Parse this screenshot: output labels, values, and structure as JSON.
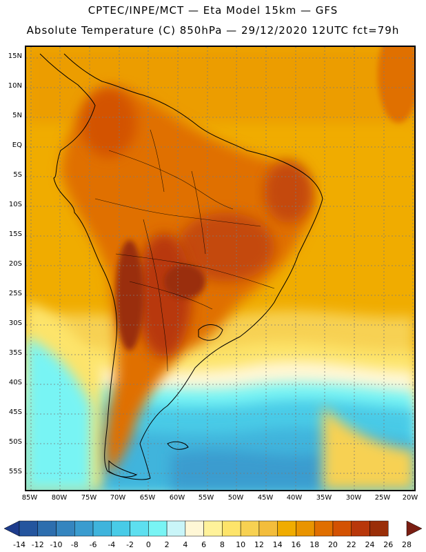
{
  "header": {
    "title_line1": "CPTEC/INPE/MCT —  Eta Model 15km — GFS",
    "title_line2": "Absolute Temperature (C) 850hPa — 29/12/2020 12UTC fct=79h"
  },
  "map": {
    "lat_labels": [
      "15N",
      "10N",
      "5N",
      "EQ",
      "5S",
      "10S",
      "15S",
      "20S",
      "25S",
      "30S",
      "35S",
      "40S",
      "45S",
      "50S",
      "55S"
    ],
    "lon_labels": [
      "85W",
      "80W",
      "75W",
      "70W",
      "65W",
      "60W",
      "55W",
      "50W",
      "45W",
      "40W",
      "35W",
      "30W",
      "25W",
      "20W"
    ],
    "colors": {
      "ocean_warm": "#f0ac00",
      "land_hot": "#c44a0a",
      "land_very_hot": "#9a2e08",
      "cold_water": "#3fd7ea",
      "coastline": "#000000",
      "grid": "#7a7a7a"
    }
  },
  "colorbar": {
    "labels": [
      "-14",
      "-12",
      "-10",
      "-8",
      "-6",
      "-4",
      "-2",
      "0",
      "2",
      "4",
      "6",
      "8",
      "10",
      "12",
      "14",
      "16",
      "18",
      "20",
      "22",
      "24",
      "26",
      "28"
    ],
    "colors": [
      "#1e3c8c",
      "#24559e",
      "#2d6eae",
      "#3585bf",
      "#3a9ccf",
      "#3fb4dc",
      "#48cbe7",
      "#5ddfef",
      "#78f4f4",
      "#c9f5f8",
      "#fff7d6",
      "#fff29a",
      "#fde46a",
      "#f7d152",
      "#f3bd3b",
      "#f0ac00",
      "#e99400",
      "#e06f00",
      "#d35202",
      "#b8370a",
      "#9a2e08",
      "#7a1e12"
    ]
  }
}
